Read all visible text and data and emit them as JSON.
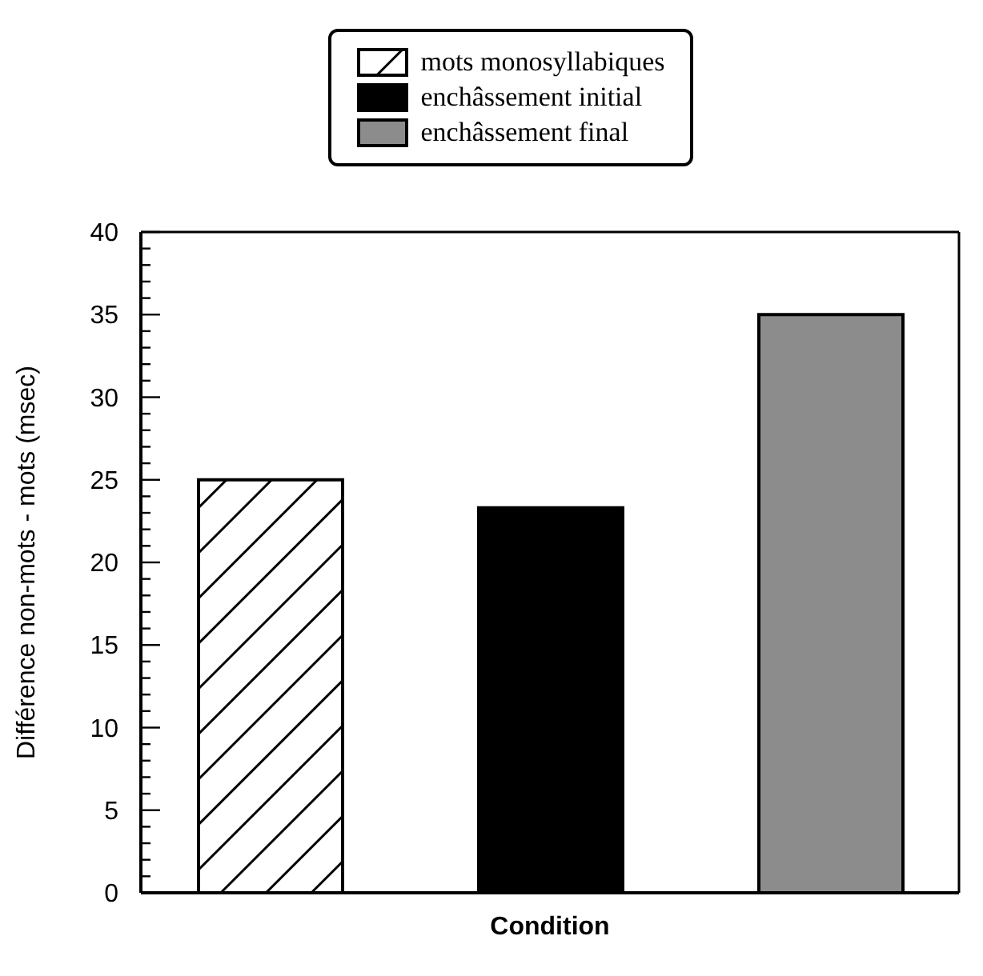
{
  "chart_data": {
    "type": "bar",
    "categories": [
      null
    ],
    "xlabel": "Condition",
    "ylabel": "Différence non-mots - mots (msec)",
    "series": [
      {
        "name": "mots monosyllabiques",
        "color": "#000000",
        "values": [
          25
        ]
      },
      {
        "name": "enchâssement initial",
        "color": "#000000",
        "values": [
          23.3
        ]
      },
      {
        "name": "enchâssement final",
        "color": "#8c8c8c",
        "values": [
          35
        ]
      }
    ],
    "ylim": [
      0,
      40
    ],
    "yticks": [
      0,
      {
        "value": 1,
        "label": null
      },
      {
        "value": 2,
        "label": null
      },
      {
        "value": 3,
        "label": null
      },
      {
        "value": 4,
        "label": null
      },
      5,
      {
        "value": 6,
        "label": null
      },
      {
        "value": 7,
        "label": null
      },
      {
        "value": 8,
        "label": null
      },
      {
        "value": 9,
        "label": null
      },
      10,
      {
        "value": 11,
        "label": null
      },
      {
        "value": 12,
        "label": null
      },
      {
        "value": 13,
        "label": null
      },
      {
        "value": 14,
        "label": null
      },
      15,
      {
        "value": 16,
        "label": null
      },
      {
        "value": 17,
        "label": null
      },
      {
        "value": 18,
        "label": null
      },
      {
        "value": 19,
        "label": null
      },
      20,
      {
        "value": 21,
        "label": null
      },
      {
        "value": 22,
        "label": null
      },
      {
        "value": 23,
        "label": null
      },
      {
        "value": 24,
        "label": null
      },
      25,
      {
        "value": 26,
        "label": null
      },
      {
        "value": 27,
        "label": null
      },
      {
        "value": 28,
        "label": null
      },
      {
        "value": 29,
        "label": null
      },
      30,
      {
        "value": 31,
        "label": null
      },
      {
        "value": 32,
        "label": null
      },
      {
        "value": 33,
        "label": null
      },
      {
        "value": 34,
        "label": null
      },
      35,
      {
        "value": 36,
        "label": null
      },
      {
        "value": 37,
        "label": null
      },
      {
        "value": 38,
        "label": null
      },
      {
        "value": 39,
        "label": null
      },
      40
    ],
    "legend": "top"
  }
}
